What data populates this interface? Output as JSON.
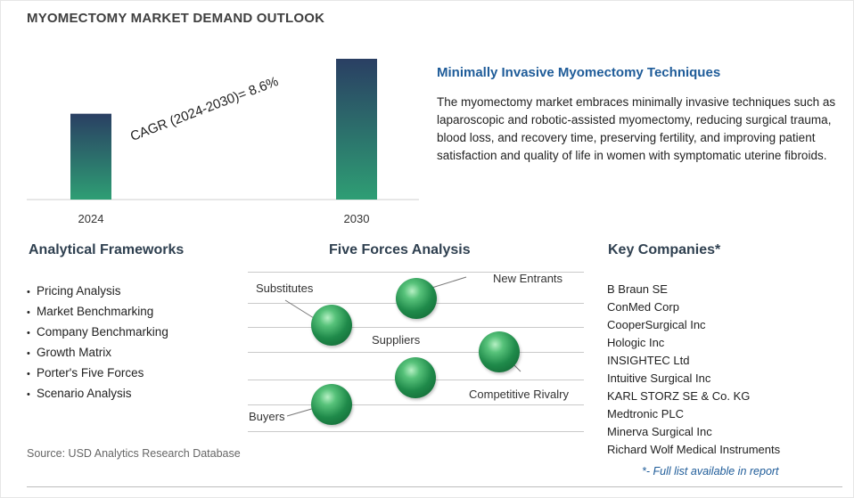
{
  "header": {
    "title": "MYOMECTOMY MARKET DEMAND OUTLOOK"
  },
  "chart_data": {
    "type": "bar",
    "categories": [
      "2024",
      "2030"
    ],
    "values": [
      1.0,
      1.64
    ],
    "annotation": "CAGR (2024-2030)=  8.6%",
    "title": "",
    "xlabel": "",
    "ylabel": "",
    "grid": false,
    "colors": {
      "bar_top": "#2a3f63",
      "bar_bottom": "#2e9e74"
    }
  },
  "description": {
    "title": "Minimally Invasive Myomectomy Techniques",
    "text": "The myomectomy market embraces minimally invasive techniques such as laparoscopic and robotic-assisted myomectomy, reducing surgical trauma, blood loss, and recovery time, preserving fertility, and improving patient satisfaction and quality of life in women with symptomatic uterine fibroids."
  },
  "frameworks": {
    "title": "Analytical Frameworks",
    "items": [
      "Pricing Analysis",
      "Market Benchmarking",
      "Company Benchmarking",
      "Growth Matrix",
      "Porter's Five Forces",
      "Scenario Analysis"
    ]
  },
  "five_forces": {
    "title": "Five Forces Analysis",
    "labels": {
      "new_entrants": "New Entrants",
      "substitutes": "Substitutes",
      "suppliers": "Suppliers",
      "competitive_rivalry": "Competitive Rivalry",
      "buyers": "Buyers"
    },
    "sphere_color": "#2e9e5a"
  },
  "companies": {
    "title": "Key Companies*",
    "items": [
      "B Braun SE",
      "ConMed Corp",
      "CooperSurgical Inc",
      "Hologic Inc",
      "INSIGHTEC Ltd",
      "Intuitive Surgical Inc",
      "KARL STORZ SE & Co. KG",
      "Medtronic PLC",
      "Minerva Surgical Inc",
      "Richard Wolf Medical Instruments"
    ],
    "footnote": "*- Full list available in report"
  },
  "source": "Source: USD Analytics Research Database"
}
